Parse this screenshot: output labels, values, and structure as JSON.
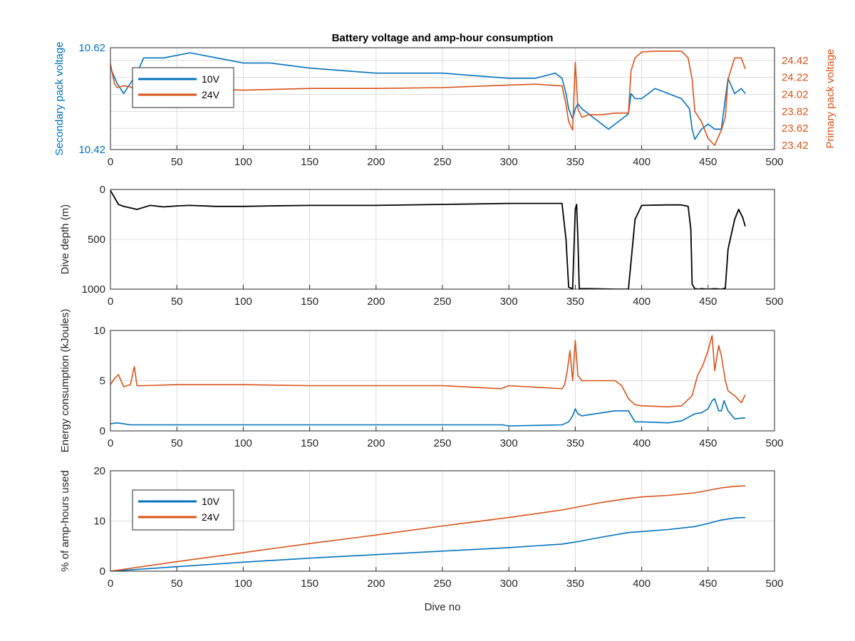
{
  "title": "Battery voltage and amp-hour consumption",
  "colors": {
    "v10": "#0072bd",
    "v24": "#d95319",
    "depth": "#000000"
  },
  "chart_data": [
    {
      "type": "line",
      "ylabel": "Secondary pack voltage",
      "ylabel_right": "Primary pack voltage",
      "xlim": [
        0,
        500
      ],
      "ylim": [
        10.42,
        10.62
      ],
      "ylim_right": [
        23.37,
        24.57
      ],
      "x_ticks": [
        "0",
        "50",
        "100",
        "150",
        "200",
        "250",
        "300",
        "350",
        "400",
        "450",
        "500"
      ],
      "y_ticks": [
        "10.42",
        "10.62"
      ],
      "y_ticks_right": [
        "23.42",
        "23.62",
        "23.82",
        "24.02",
        "24.22",
        "24.42"
      ],
      "grid": true,
      "legend": {
        "placement": "top-left",
        "entries": [
          "10V",
          "24V"
        ]
      },
      "series": [
        {
          "name": "10V",
          "axis": "left",
          "x": [
            0,
            5,
            10,
            15,
            20,
            25,
            30,
            40,
            60,
            80,
            100,
            120,
            150,
            200,
            250,
            300,
            320,
            335,
            340,
            343,
            345,
            348,
            350,
            352,
            355,
            360,
            370,
            375,
            380,
            385,
            390,
            392,
            395,
            400,
            405,
            410,
            420,
            430,
            436,
            438,
            440,
            445,
            450,
            455,
            460,
            463,
            465,
            470,
            475,
            478
          ],
          "y": [
            10.58,
            10.55,
            10.53,
            10.55,
            10.57,
            10.6,
            10.6,
            10.6,
            10.61,
            10.6,
            10.59,
            10.59,
            10.58,
            10.57,
            10.57,
            10.56,
            10.56,
            10.57,
            10.56,
            10.53,
            10.5,
            10.48,
            10.5,
            10.51,
            10.5,
            10.49,
            10.47,
            10.46,
            10.47,
            10.48,
            10.49,
            10.53,
            10.52,
            10.52,
            10.53,
            10.54,
            10.53,
            10.52,
            10.5,
            10.46,
            10.44,
            10.46,
            10.47,
            10.46,
            10.46,
            10.52,
            10.56,
            10.53,
            10.54,
            10.53
          ]
        },
        {
          "name": "24V",
          "axis": "right",
          "x": [
            0,
            1,
            3,
            5,
            10,
            15,
            20,
            25,
            30,
            40,
            60,
            80,
            100,
            150,
            200,
            250,
            300,
            320,
            340,
            343,
            345,
            348,
            350,
            352,
            355,
            360,
            370,
            380,
            390,
            392,
            395,
            400,
            410,
            420,
            430,
            435,
            438,
            440,
            445,
            450,
            455,
            460,
            463,
            465,
            470,
            475,
            478
          ],
          "y": [
            24.38,
            24.3,
            24.15,
            24.1,
            24.12,
            24.11,
            24.06,
            24.05,
            24.04,
            24.05,
            24.08,
            24.08,
            24.07,
            24.09,
            24.09,
            24.1,
            24.13,
            24.14,
            24.12,
            23.9,
            23.7,
            23.6,
            24.4,
            23.85,
            23.75,
            23.78,
            23.78,
            23.8,
            23.8,
            24.3,
            24.45,
            24.52,
            24.53,
            24.53,
            24.53,
            24.45,
            24.2,
            23.82,
            23.7,
            23.5,
            23.42,
            23.6,
            23.75,
            24.2,
            24.45,
            24.45,
            24.32
          ]
        }
      ]
    },
    {
      "type": "line",
      "ylabel": "Dive depth (m)",
      "xlim": [
        0,
        500
      ],
      "ylim": [
        1000,
        0
      ],
      "y_reversed": true,
      "x_ticks": [
        "0",
        "50",
        "100",
        "150",
        "200",
        "250",
        "300",
        "350",
        "400",
        "450",
        "500"
      ],
      "y_ticks": [
        "0",
        "500",
        "1000"
      ],
      "grid": true,
      "series": [
        {
          "name": "",
          "x": [
            0,
            3,
            6,
            10,
            15,
            20,
            25,
            30,
            40,
            50,
            60,
            80,
            100,
            120,
            150,
            200,
            250,
            300,
            340,
            343,
            345,
            348,
            350,
            351,
            352,
            353,
            354,
            355,
            360,
            380,
            390,
            395,
            400,
            420,
            430,
            435,
            437,
            438,
            440,
            443,
            445,
            450,
            455,
            460,
            463,
            465,
            470,
            473,
            476,
            478
          ],
          "y": [
            10,
            80,
            150,
            170,
            185,
            200,
            180,
            160,
            175,
            165,
            160,
            170,
            170,
            165,
            160,
            160,
            150,
            140,
            140,
            500,
            980,
            995,
            200,
            150,
            500,
            990,
            995,
            995,
            995,
            1000,
            1000,
            300,
            160,
            155,
            155,
            170,
            400,
            950,
            995,
            1000,
            995,
            1000,
            995,
            1000,
            990,
            600,
            300,
            200,
            280,
            370
          ]
        }
      ]
    },
    {
      "type": "line",
      "ylabel": "Energy consumption (kJoules)",
      "xlim": [
        0,
        500
      ],
      "ylim": [
        0,
        10
      ],
      "x_ticks": [
        "0",
        "50",
        "100",
        "150",
        "200",
        "250",
        "300",
        "350",
        "400",
        "450",
        "500"
      ],
      "y_ticks": [
        "0",
        "5",
        "10"
      ],
      "grid": true,
      "series": [
        {
          "name": "10V",
          "x": [
            0,
            5,
            10,
            15,
            20,
            50,
            100,
            150,
            200,
            250,
            295,
            300,
            340,
            345,
            348,
            350,
            352,
            355,
            360,
            380,
            390,
            395,
            400,
            420,
            430,
            440,
            445,
            450,
            453,
            455,
            458,
            460,
            462,
            465,
            470,
            478
          ],
          "y": [
            0.7,
            0.8,
            0.7,
            0.6,
            0.6,
            0.6,
            0.6,
            0.6,
            0.6,
            0.6,
            0.6,
            0.5,
            0.6,
            0.9,
            1.5,
            2.2,
            1.7,
            1.5,
            1.6,
            2.0,
            2.0,
            0.9,
            0.9,
            0.8,
            1.0,
            1.7,
            1.8,
            2.2,
            3.0,
            3.2,
            2.0,
            2.0,
            3.0,
            2.0,
            1.2,
            1.3
          ]
        },
        {
          "name": "24V",
          "x": [
            0,
            3,
            6,
            10,
            15,
            18,
            20,
            25,
            50,
            100,
            150,
            200,
            250,
            294,
            300,
            340,
            342,
            344,
            346,
            348,
            350,
            352,
            355,
            360,
            380,
            385,
            390,
            395,
            400,
            420,
            430,
            438,
            442,
            446,
            450,
            453,
            455,
            458,
            460,
            463,
            465,
            470,
            475,
            478
          ],
          "y": [
            4.6,
            5.2,
            5.6,
            4.4,
            4.6,
            6.4,
            4.5,
            4.5,
            4.6,
            4.6,
            4.5,
            4.5,
            4.5,
            4.2,
            4.5,
            4.2,
            4.6,
            6.0,
            8.0,
            5.0,
            9.0,
            5.5,
            5.0,
            5.0,
            5.0,
            4.5,
            3.2,
            2.6,
            2.5,
            2.4,
            2.5,
            3.5,
            5.5,
            6.5,
            8.0,
            9.5,
            6.0,
            8.5,
            7.5,
            5.0,
            4.0,
            3.5,
            2.8,
            3.6
          ]
        }
      ]
    },
    {
      "type": "line",
      "ylabel": "% of amp-hours used",
      "xlabel": "Dive no",
      "xlim": [
        0,
        500
      ],
      "ylim": [
        0,
        20
      ],
      "x_ticks": [
        "0",
        "50",
        "100",
        "150",
        "200",
        "250",
        "300",
        "350",
        "400",
        "450",
        "500"
      ],
      "y_ticks": [
        "0",
        "10",
        "20"
      ],
      "grid": true,
      "legend": {
        "placement": "left",
        "entries": [
          "10V",
          "24V"
        ]
      },
      "series": [
        {
          "name": "10V",
          "x": [
            0,
            50,
            100,
            150,
            200,
            250,
            300,
            340,
            350,
            370,
            390,
            400,
            420,
            440,
            450,
            460,
            470,
            478
          ],
          "y": [
            0,
            0.9,
            1.8,
            2.6,
            3.3,
            4.0,
            4.7,
            5.4,
            5.8,
            6.8,
            7.7,
            7.9,
            8.3,
            8.9,
            9.5,
            10.2,
            10.6,
            10.7
          ]
        },
        {
          "name": "24V",
          "x": [
            0,
            50,
            100,
            150,
            200,
            250,
            300,
            340,
            350,
            370,
            390,
            400,
            420,
            440,
            450,
            460,
            470,
            478
          ],
          "y": [
            0,
            1.9,
            3.7,
            5.5,
            7.2,
            9.0,
            10.7,
            12.2,
            12.7,
            13.7,
            14.5,
            14.8,
            15.1,
            15.6,
            16.1,
            16.6,
            16.9,
            17.0
          ]
        }
      ]
    }
  ]
}
